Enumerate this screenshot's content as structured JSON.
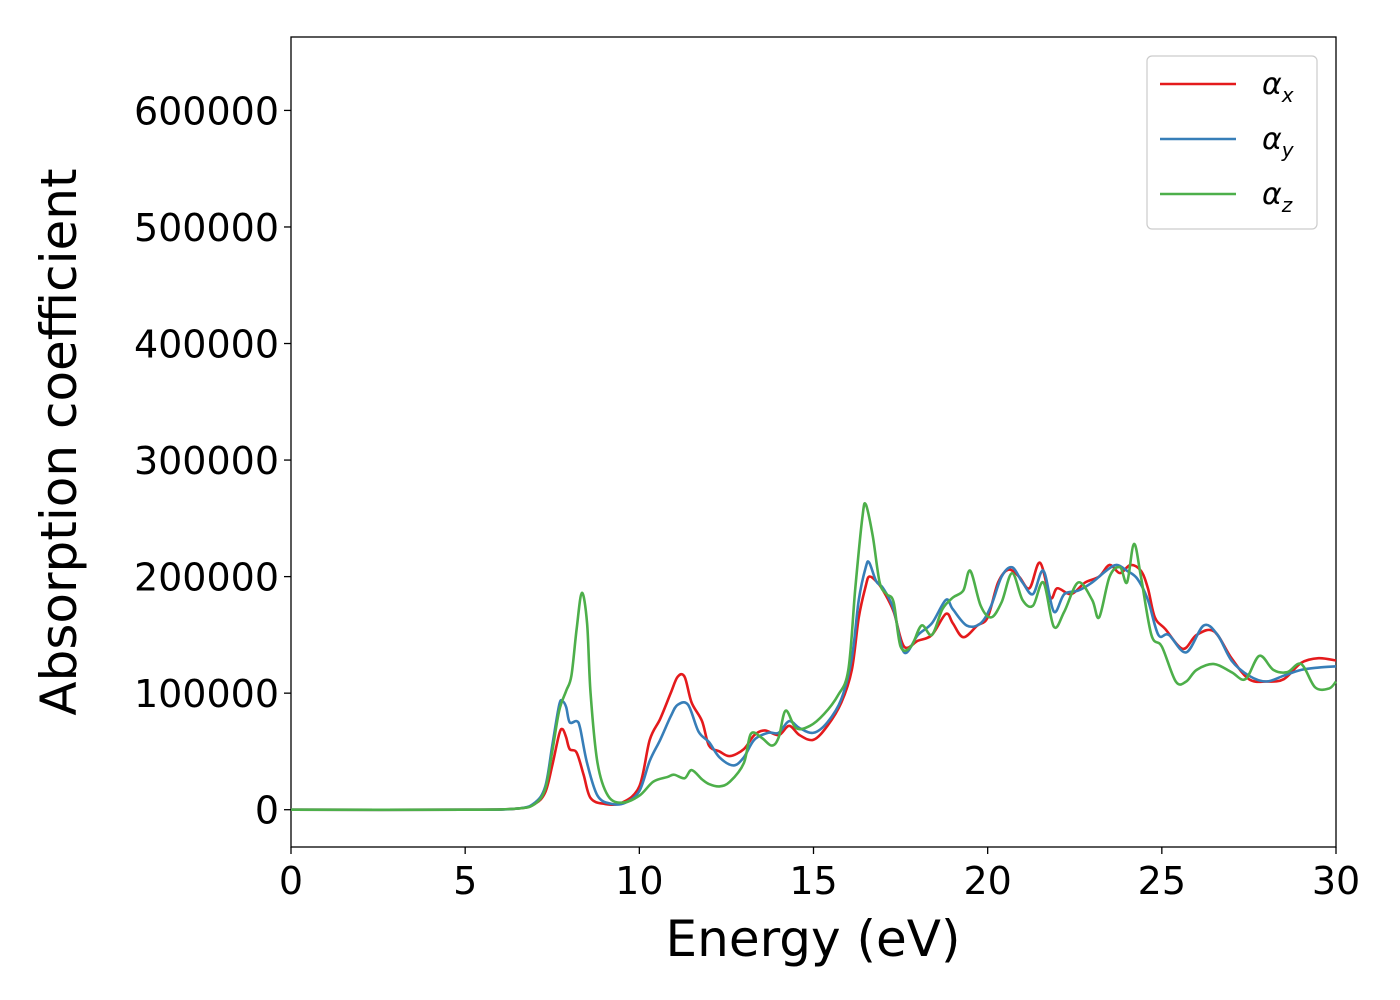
{
  "chart_data": {
    "type": "line",
    "title": "",
    "xlabel": "Energy (eV)",
    "ylabel": "Absorption coefficient",
    "xlim": [
      0,
      30
    ],
    "ylim": [
      -32000,
      663000
    ],
    "xticks": [
      0,
      5,
      10,
      15,
      20,
      25,
      30
    ],
    "yticks": [
      0,
      100000,
      200000,
      300000,
      400000,
      500000,
      600000
    ],
    "grid": false,
    "legend_position": "top-right",
    "series": [
      {
        "name": "α",
        "subscript": "x",
        "color": "#e41a1c",
        "points": [
          [
            0,
            0
          ],
          [
            5,
            0
          ],
          [
            6.5,
            1000
          ],
          [
            7.0,
            5000
          ],
          [
            7.3,
            15000
          ],
          [
            7.5,
            38000
          ],
          [
            7.7,
            65000
          ],
          [
            7.8,
            69000
          ],
          [
            7.9,
            62000
          ],
          [
            8.0,
            52000
          ],
          [
            8.2,
            49000
          ],
          [
            8.4,
            30000
          ],
          [
            8.6,
            10000
          ],
          [
            9.0,
            5000
          ],
          [
            9.5,
            6000
          ],
          [
            10.0,
            20000
          ],
          [
            10.3,
            60000
          ],
          [
            10.6,
            78000
          ],
          [
            10.9,
            100000
          ],
          [
            11.1,
            114000
          ],
          [
            11.3,
            114000
          ],
          [
            11.5,
            92000
          ],
          [
            11.8,
            76000
          ],
          [
            12.0,
            55000
          ],
          [
            12.3,
            50000
          ],
          [
            12.6,
            46000
          ],
          [
            13.0,
            52000
          ],
          [
            13.3,
            64000
          ],
          [
            13.6,
            68000
          ],
          [
            14.0,
            64000
          ],
          [
            14.3,
            72000
          ],
          [
            14.6,
            64000
          ],
          [
            15.0,
            60000
          ],
          [
            15.4,
            72000
          ],
          [
            15.8,
            92000
          ],
          [
            16.1,
            120000
          ],
          [
            16.3,
            165000
          ],
          [
            16.5,
            192000
          ],
          [
            16.6,
            200000
          ],
          [
            16.8,
            196000
          ],
          [
            17.0,
            188000
          ],
          [
            17.3,
            170000
          ],
          [
            17.6,
            140000
          ],
          [
            18.0,
            145000
          ],
          [
            18.4,
            150000
          ],
          [
            18.8,
            168000
          ],
          [
            19.0,
            160000
          ],
          [
            19.3,
            148000
          ],
          [
            19.7,
            158000
          ],
          [
            20.0,
            165000
          ],
          [
            20.3,
            195000
          ],
          [
            20.6,
            206000
          ],
          [
            20.9,
            200000
          ],
          [
            21.2,
            190000
          ],
          [
            21.5,
            212000
          ],
          [
            21.8,
            182000
          ],
          [
            22.0,
            190000
          ],
          [
            22.4,
            185000
          ],
          [
            22.8,
            195000
          ],
          [
            23.2,
            200000
          ],
          [
            23.5,
            210000
          ],
          [
            23.8,
            203000
          ],
          [
            24.1,
            210000
          ],
          [
            24.4,
            205000
          ],
          [
            24.6,
            190000
          ],
          [
            24.8,
            165000
          ],
          [
            25.1,
            155000
          ],
          [
            25.6,
            138000
          ],
          [
            26.0,
            150000
          ],
          [
            26.5,
            153000
          ],
          [
            27.0,
            130000
          ],
          [
            27.5,
            112000
          ],
          [
            28.0,
            110000
          ],
          [
            28.5,
            112000
          ],
          [
            29.0,
            126000
          ],
          [
            29.5,
            130000
          ],
          [
            30.0,
            128000
          ]
        ]
      },
      {
        "name": "α",
        "subscript": "y",
        "color": "#377eb8",
        "points": [
          [
            0,
            0
          ],
          [
            5,
            0
          ],
          [
            6.5,
            1000
          ],
          [
            7.0,
            6000
          ],
          [
            7.3,
            20000
          ],
          [
            7.5,
            55000
          ],
          [
            7.7,
            90000
          ],
          [
            7.8,
            93000
          ],
          [
            7.9,
            88000
          ],
          [
            8.0,
            75000
          ],
          [
            8.2,
            76000
          ],
          [
            8.3,
            70000
          ],
          [
            8.5,
            40000
          ],
          [
            8.8,
            12000
          ],
          [
            9.2,
            5000
          ],
          [
            9.6,
            6000
          ],
          [
            10.0,
            16000
          ],
          [
            10.3,
            42000
          ],
          [
            10.6,
            60000
          ],
          [
            10.9,
            80000
          ],
          [
            11.1,
            90000
          ],
          [
            11.4,
            90000
          ],
          [
            11.7,
            67000
          ],
          [
            12.0,
            58000
          ],
          [
            12.3,
            45000
          ],
          [
            12.7,
            38000
          ],
          [
            13.0,
            45000
          ],
          [
            13.3,
            60000
          ],
          [
            13.7,
            66000
          ],
          [
            14.0,
            66000
          ],
          [
            14.3,
            76000
          ],
          [
            14.6,
            70000
          ],
          [
            15.0,
            66000
          ],
          [
            15.4,
            75000
          ],
          [
            15.8,
            95000
          ],
          [
            16.1,
            130000
          ],
          [
            16.3,
            180000
          ],
          [
            16.5,
            208000
          ],
          [
            16.6,
            212000
          ],
          [
            16.8,
            196000
          ],
          [
            17.0,
            190000
          ],
          [
            17.3,
            172000
          ],
          [
            17.6,
            135000
          ],
          [
            18.0,
            150000
          ],
          [
            18.4,
            160000
          ],
          [
            18.8,
            180000
          ],
          [
            19.0,
            172000
          ],
          [
            19.4,
            158000
          ],
          [
            19.8,
            160000
          ],
          [
            20.1,
            175000
          ],
          [
            20.4,
            200000
          ],
          [
            20.7,
            208000
          ],
          [
            21.0,
            195000
          ],
          [
            21.3,
            185000
          ],
          [
            21.6,
            205000
          ],
          [
            21.9,
            170000
          ],
          [
            22.2,
            185000
          ],
          [
            22.6,
            188000
          ],
          [
            23.0,
            195000
          ],
          [
            23.4,
            205000
          ],
          [
            23.7,
            210000
          ],
          [
            24.0,
            205000
          ],
          [
            24.3,
            198000
          ],
          [
            24.6,
            180000
          ],
          [
            24.9,
            150000
          ],
          [
            25.2,
            150000
          ],
          [
            25.7,
            135000
          ],
          [
            26.2,
            158000
          ],
          [
            26.6,
            150000
          ],
          [
            27.0,
            128000
          ],
          [
            27.5,
            115000
          ],
          [
            28.0,
            110000
          ],
          [
            28.5,
            115000
          ],
          [
            29.0,
            120000
          ],
          [
            29.5,
            122000
          ],
          [
            30.0,
            123000
          ]
        ]
      },
      {
        "name": "α",
        "subscript": "z",
        "color": "#4daf4a",
        "points": [
          [
            0,
            0
          ],
          [
            5,
            0
          ],
          [
            6.5,
            1000
          ],
          [
            7.0,
            5000
          ],
          [
            7.3,
            18000
          ],
          [
            7.5,
            50000
          ],
          [
            7.7,
            85000
          ],
          [
            7.9,
            102000
          ],
          [
            8.05,
            115000
          ],
          [
            8.2,
            155000
          ],
          [
            8.35,
            186000
          ],
          [
            8.5,
            160000
          ],
          [
            8.6,
            100000
          ],
          [
            8.8,
            40000
          ],
          [
            9.1,
            12000
          ],
          [
            9.5,
            6000
          ],
          [
            10.0,
            12000
          ],
          [
            10.4,
            24000
          ],
          [
            10.8,
            28000
          ],
          [
            11.0,
            30000
          ],
          [
            11.3,
            27000
          ],
          [
            11.5,
            34000
          ],
          [
            11.8,
            26000
          ],
          [
            12.0,
            22000
          ],
          [
            12.3,
            20000
          ],
          [
            12.6,
            24000
          ],
          [
            13.0,
            40000
          ],
          [
            13.2,
            65000
          ],
          [
            13.5,
            62000
          ],
          [
            13.8,
            55000
          ],
          [
            14.0,
            62000
          ],
          [
            14.2,
            85000
          ],
          [
            14.5,
            70000
          ],
          [
            14.9,
            72000
          ],
          [
            15.3,
            82000
          ],
          [
            15.7,
            98000
          ],
          [
            16.0,
            120000
          ],
          [
            16.2,
            190000
          ],
          [
            16.4,
            250000
          ],
          [
            16.5,
            262000
          ],
          [
            16.7,
            235000
          ],
          [
            16.9,
            195000
          ],
          [
            17.1,
            185000
          ],
          [
            17.3,
            178000
          ],
          [
            17.5,
            140000
          ],
          [
            17.8,
            140000
          ],
          [
            18.1,
            158000
          ],
          [
            18.4,
            150000
          ],
          [
            18.7,
            172000
          ],
          [
            19.0,
            182000
          ],
          [
            19.3,
            188000
          ],
          [
            19.5,
            205000
          ],
          [
            19.8,
            175000
          ],
          [
            20.1,
            165000
          ],
          [
            20.4,
            178000
          ],
          [
            20.7,
            203000
          ],
          [
            21.0,
            180000
          ],
          [
            21.3,
            175000
          ],
          [
            21.6,
            195000
          ],
          [
            21.9,
            157000
          ],
          [
            22.2,
            170000
          ],
          [
            22.6,
            195000
          ],
          [
            23.0,
            180000
          ],
          [
            23.2,
            165000
          ],
          [
            23.5,
            200000
          ],
          [
            23.8,
            208000
          ],
          [
            24.0,
            195000
          ],
          [
            24.2,
            228000
          ],
          [
            24.4,
            200000
          ],
          [
            24.7,
            150000
          ],
          [
            25.0,
            140000
          ],
          [
            25.4,
            110000
          ],
          [
            25.7,
            110000
          ],
          [
            26.0,
            120000
          ],
          [
            26.5,
            125000
          ],
          [
            27.0,
            118000
          ],
          [
            27.4,
            112000
          ],
          [
            27.8,
            132000
          ],
          [
            28.2,
            120000
          ],
          [
            28.6,
            118000
          ],
          [
            29.0,
            125000
          ],
          [
            29.4,
            105000
          ],
          [
            29.8,
            104000
          ],
          [
            30.0,
            110000
          ]
        ]
      }
    ]
  }
}
